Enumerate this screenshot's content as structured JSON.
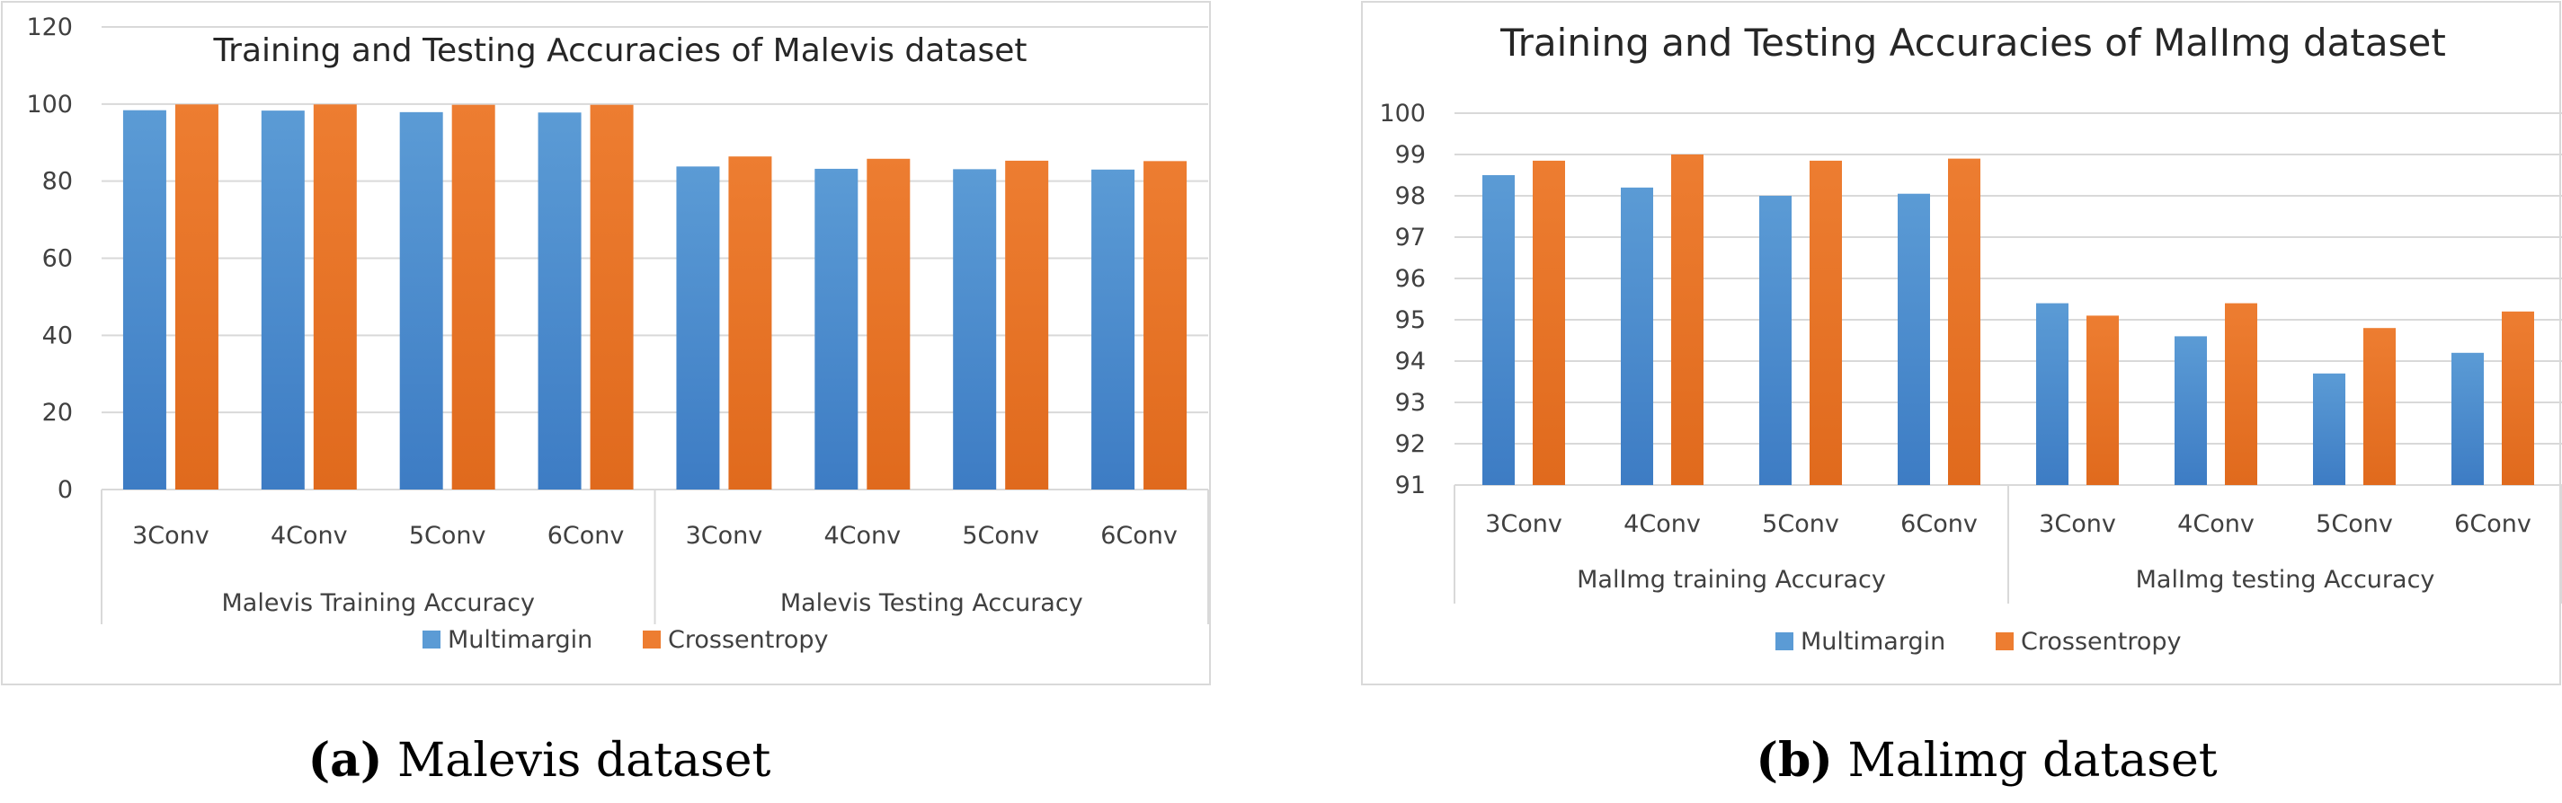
{
  "colors": {
    "multimargin": "#5b9bd5",
    "multimargin_dark": "#3d7cc4",
    "crossentropy": "#ed7d31",
    "crossentropy_dark": "#e06a1d",
    "axis": "#d9d9d9",
    "text": "#404040"
  },
  "chart_data": [
    {
      "type": "bar",
      "title": "Training and Testing Accuracies of Malevis dataset",
      "groups": [
        "Malevis Training Accuracy",
        "Malevis Testing Accuracy"
      ],
      "categories": [
        "3Conv",
        "4Conv",
        "5Conv",
        "6Conv",
        "3Conv",
        "4Conv",
        "5Conv",
        "6Conv"
      ],
      "series": [
        {
          "name": "Multimargin",
          "values": [
            98.4,
            98.3,
            97.9,
            97.8,
            83.8,
            83.2,
            83.1,
            83.0
          ]
        },
        {
          "name": "Crossentropy",
          "values": [
            99.9,
            99.9,
            99.8,
            99.8,
            86.4,
            85.8,
            85.3,
            85.2
          ]
        }
      ],
      "ylim": [
        0,
        120
      ],
      "yticks": [
        "0",
        "20",
        "40",
        "60",
        "80",
        "100",
        "120"
      ],
      "grid": true,
      "legend": "bottom"
    },
    {
      "type": "bar",
      "title": "Training and Testing Accuracies of MalImg dataset",
      "groups": [
        "MalImg training Accuracy",
        "MalImg testing Accuracy"
      ],
      "categories": [
        "3Conv",
        "4Conv",
        "5Conv",
        "6Conv",
        "3Conv",
        "4Conv",
        "5Conv",
        "6Conv"
      ],
      "series": [
        {
          "name": "Multimargin",
          "values": [
            98.5,
            98.2,
            98.0,
            98.05,
            95.4,
            94.6,
            93.7,
            94.2
          ]
        },
        {
          "name": "Crossentropy",
          "values": [
            98.85,
            99.0,
            98.85,
            98.9,
            95.1,
            95.4,
            94.8,
            95.2
          ]
        }
      ],
      "ylim": [
        91,
        100
      ],
      "yticks": [
        "91",
        "92",
        "93",
        "94",
        "95",
        "96",
        "97",
        "98",
        "99",
        "100"
      ],
      "grid": true,
      "legend": "bottom"
    }
  ],
  "captions": [
    {
      "tag": "(a)",
      "text": " Malevis dataset"
    },
    {
      "tag": "(b)",
      "text": " Malimg dataset"
    }
  ]
}
